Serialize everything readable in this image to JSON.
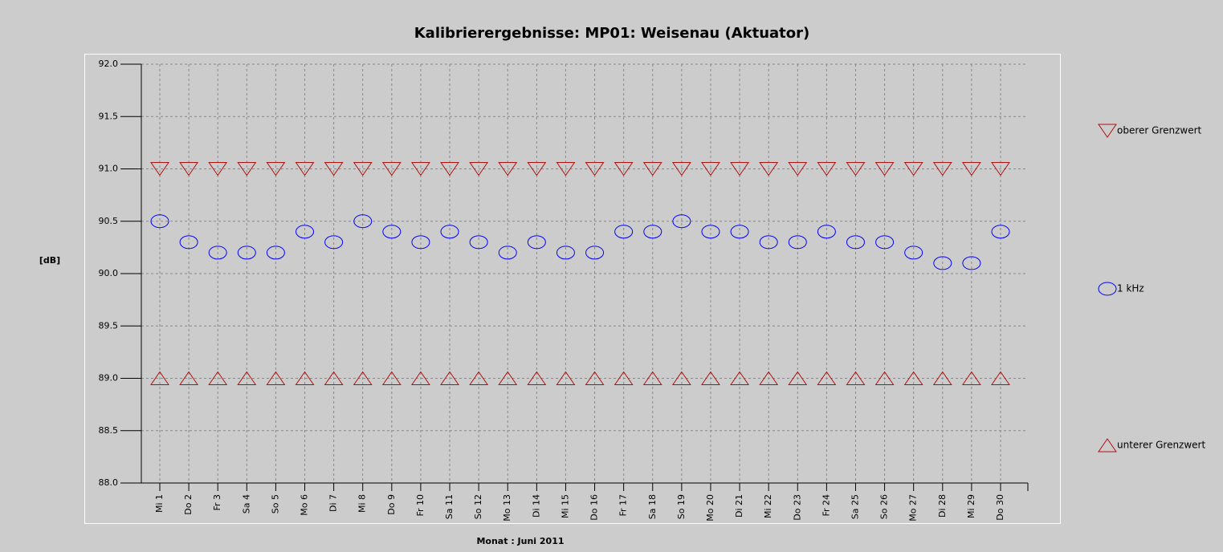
{
  "chart_data": {
    "type": "scatter",
    "title": "Kalibrierergebnisse: MP01: Weisenau (Aktuator)",
    "x_label": "Monat : Juni 2011",
    "y_label": "[dB]",
    "categories": [
      "Mi 1",
      "Do 2",
      "Fr 3",
      "Sa 4",
      "So 5",
      "Mo 6",
      "Di 7",
      "Mi 8",
      "Do 9",
      "Fr 10",
      "Sa 11",
      "So 12",
      "Mo 13",
      "Di 14",
      "Mi 15",
      "Do 16",
      "Fr 17",
      "Sa 18",
      "So 19",
      "Mo 20",
      "Di 21",
      "Mi 22",
      "Do 23",
      "Fr 24",
      "Sa 25",
      "So 26",
      "Mo 27",
      "Di 28",
      "Mi 29",
      "Do 30"
    ],
    "series": [
      {
        "name": "oberer Grenzwert",
        "color": "#b01010",
        "marker": "triangle-down",
        "values": [
          91,
          91,
          91,
          91,
          91,
          91,
          91,
          91,
          91,
          91,
          91,
          91,
          91,
          91,
          91,
          91,
          91,
          91,
          91,
          91,
          91,
          91,
          91,
          91,
          91,
          91,
          91,
          91,
          91,
          91
        ]
      },
      {
        "name": "1 kHz",
        "color": "#0000ff",
        "marker": "circle",
        "values": [
          90.5,
          90.3,
          90.2,
          90.2,
          90.2,
          90.4,
          90.3,
          90.5,
          90.4,
          90.3,
          90.4,
          90.3,
          90.2,
          90.3,
          90.2,
          90.2,
          90.4,
          90.4,
          90.5,
          90.4,
          90.4,
          90.3,
          90.3,
          90.4,
          90.3,
          90.3,
          90.2,
          90.1,
          90.1,
          90.4
        ]
      },
      {
        "name": "unterer Grenzwert",
        "color": "#b01010",
        "marker": "triangle-up",
        "values": [
          89,
          89,
          89,
          89,
          89,
          89,
          89,
          89,
          89,
          89,
          89,
          89,
          89,
          89,
          89,
          89,
          89,
          89,
          89,
          89,
          89,
          89,
          89,
          89,
          89,
          89,
          89,
          89,
          89,
          89
        ]
      }
    ],
    "ylim": [
      88,
      92
    ],
    "yticks": [
      {
        "value": 88,
        "label": "88.0"
      },
      88.5,
      {
        "value": 89,
        "label": "89.0"
      },
      89.5,
      {
        "value": 90,
        "label": "90.0"
      },
      90.5,
      {
        "value": 91,
        "label": "91.0"
      },
      91.5,
      {
        "value": 92,
        "label": "92.0"
      }
    ],
    "grid": true,
    "legend": "right"
  }
}
